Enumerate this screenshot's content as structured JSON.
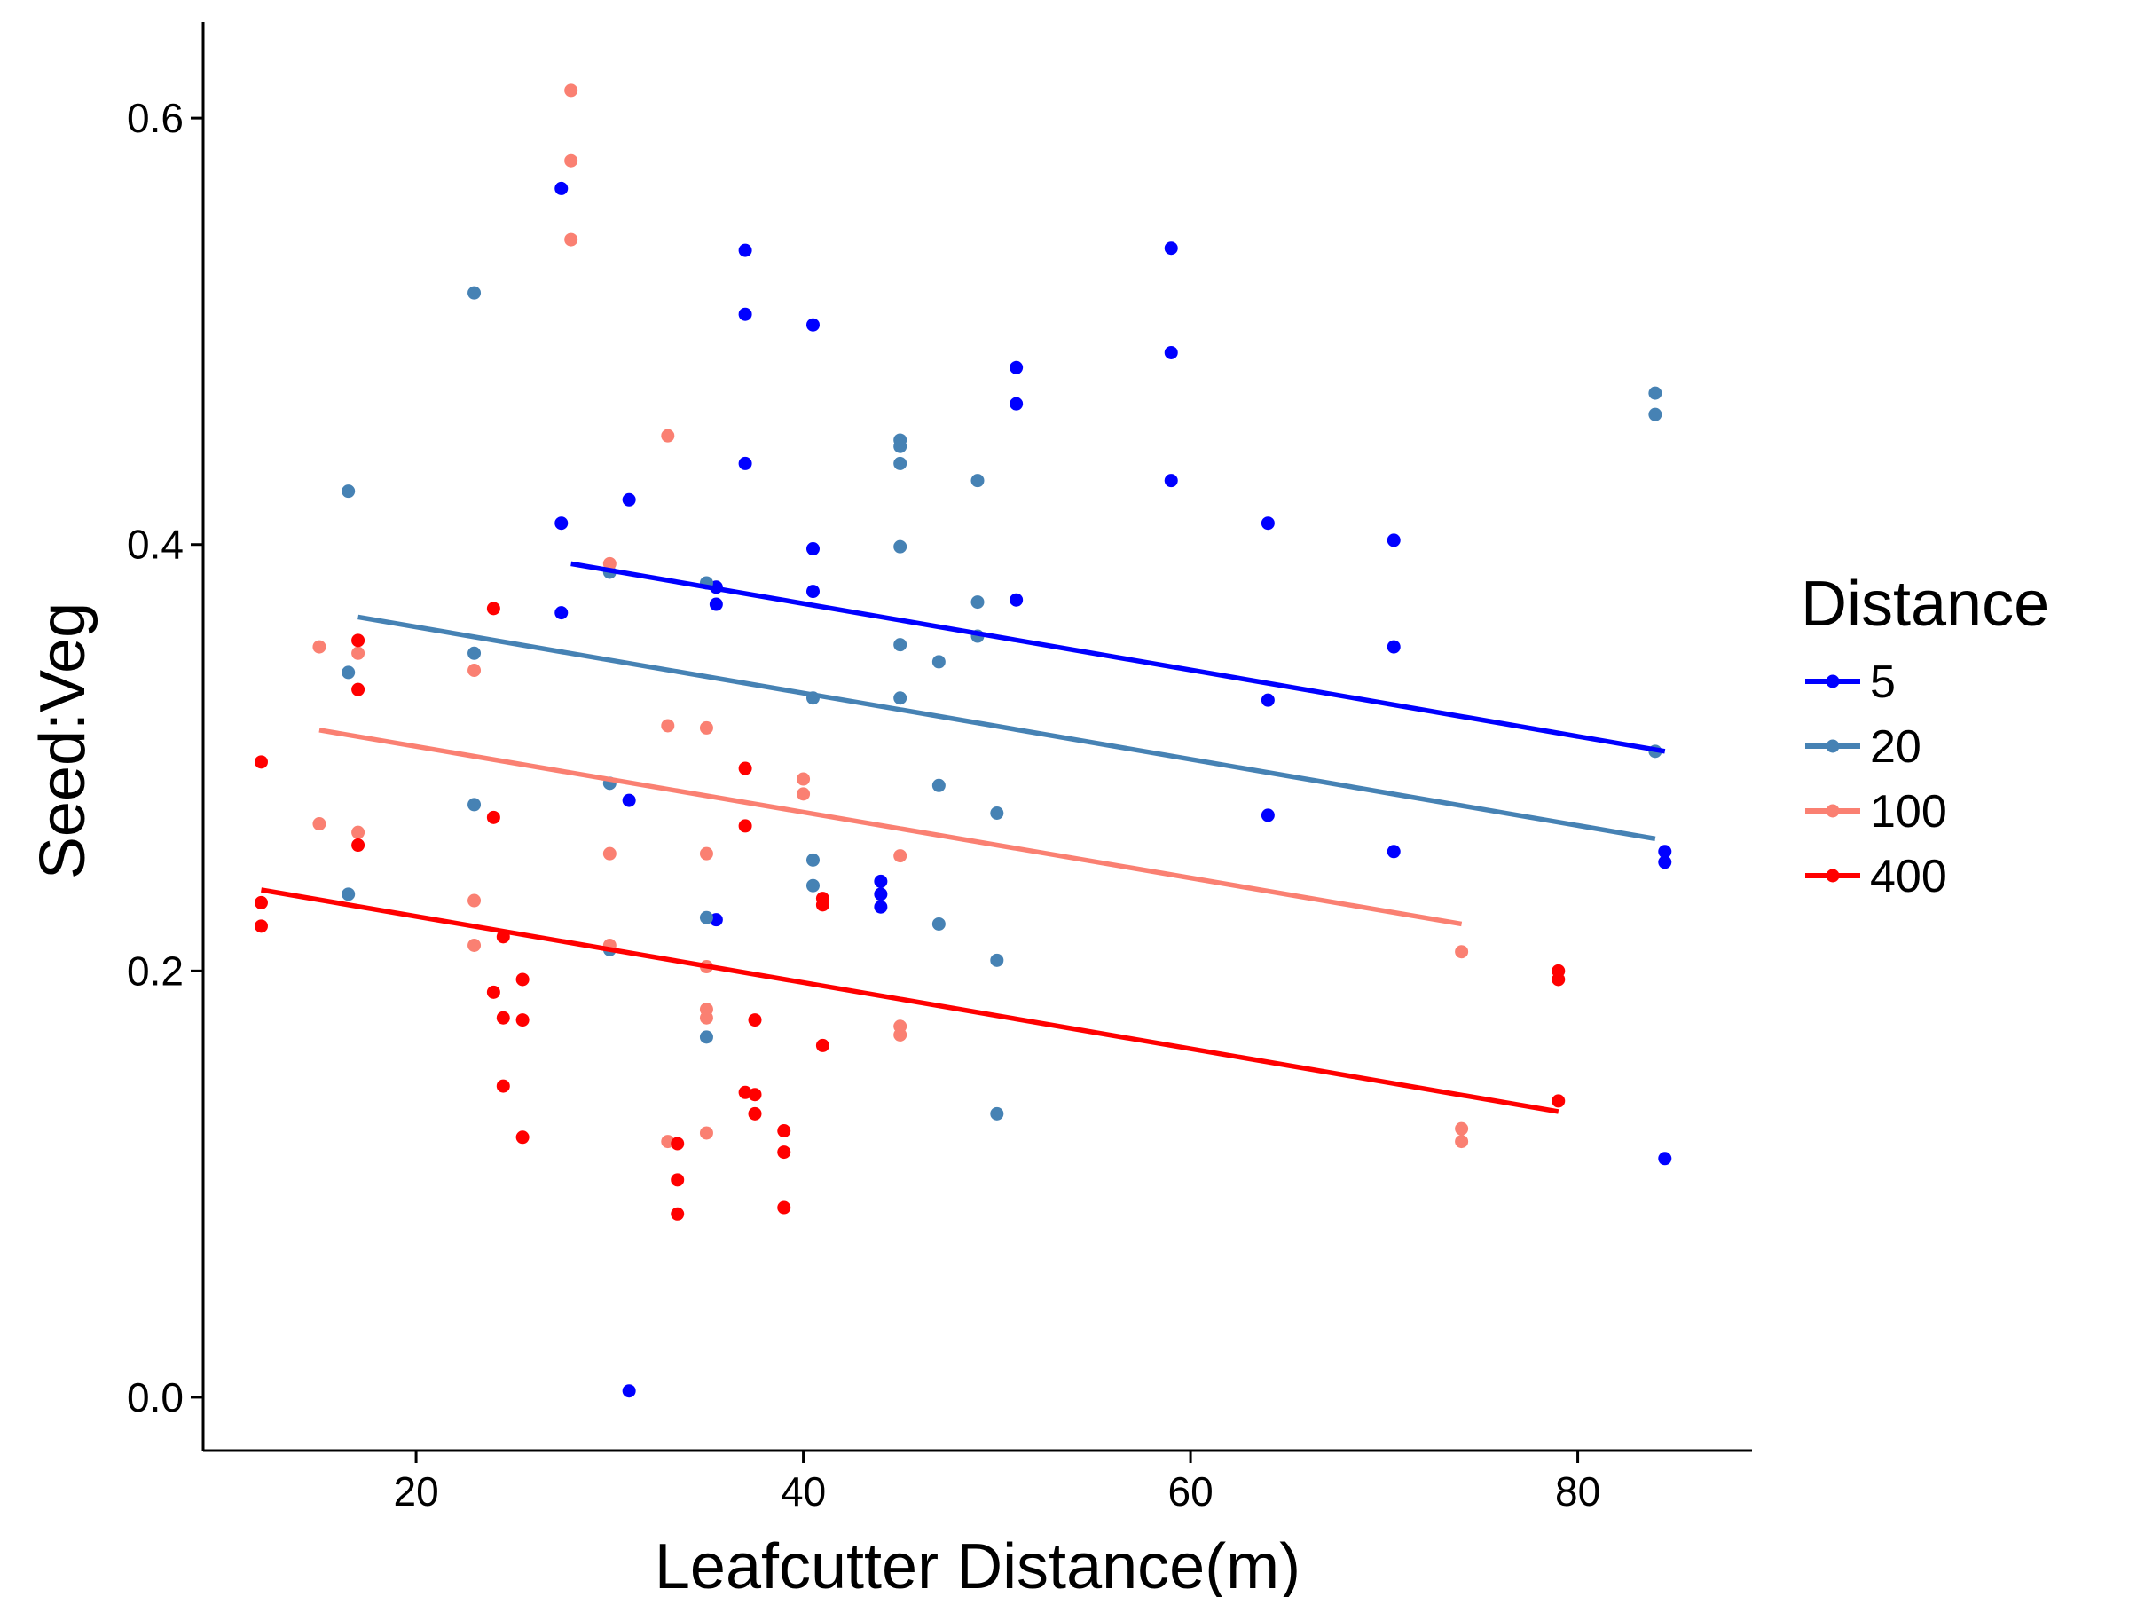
{
  "chart_data": {
    "type": "scatter",
    "title": "",
    "xlabel": "Leafcutter Distance(m)",
    "ylabel": "Seed:Veg",
    "xlim": [
      9,
      89
    ],
    "ylim": [
      -0.025,
      0.645
    ],
    "xticks": [
      20,
      40,
      60,
      80
    ],
    "yticks": [
      0.0,
      0.2,
      0.4,
      0.6
    ],
    "xtick_labels": [
      "20",
      "40",
      "60",
      "80"
    ],
    "ytick_labels": [
      "0.0",
      "0.2",
      "0.4",
      "0.6"
    ],
    "grid": false,
    "legend": {
      "title": "Distance",
      "placement": "right"
    },
    "series": [
      {
        "name": "5",
        "color": "#0000FF",
        "points": [
          [
            27.5,
            0.567
          ],
          [
            37,
            0.538
          ],
          [
            59,
            0.539
          ],
          [
            37,
            0.508
          ],
          [
            40.5,
            0.503
          ],
          [
            59,
            0.49
          ],
          [
            51,
            0.483
          ],
          [
            51,
            0.466
          ],
          [
            37,
            0.438
          ],
          [
            59,
            0.43
          ],
          [
            31,
            0.421
          ],
          [
            27.5,
            0.41
          ],
          [
            64,
            0.41
          ],
          [
            70.5,
            0.402
          ],
          [
            40.5,
            0.398
          ],
          [
            40.5,
            0.378
          ],
          [
            35.5,
            0.38
          ],
          [
            35.5,
            0.372
          ],
          [
            51,
            0.374
          ],
          [
            27.5,
            0.368
          ],
          [
            70.5,
            0.352
          ],
          [
            64,
            0.327
          ],
          [
            31,
            0.28
          ],
          [
            64,
            0.273
          ],
          [
            70.5,
            0.256
          ],
          [
            84.5,
            0.256
          ],
          [
            84.5,
            0.251
          ],
          [
            44,
            0.242
          ],
          [
            44,
            0.236
          ],
          [
            44,
            0.23
          ],
          [
            35.5,
            0.224
          ],
          [
            84.5,
            0.112
          ],
          [
            31,
            0.003
          ]
        ],
        "fit": [
          [
            28,
            0.391
          ],
          [
            84.5,
            0.303
          ]
        ]
      },
      {
        "name": "20",
        "color": "#4682B4",
        "points": [
          [
            23,
            0.518
          ],
          [
            84,
            0.471
          ],
          [
            84,
            0.461
          ],
          [
            45,
            0.449
          ],
          [
            45,
            0.446
          ],
          [
            45,
            0.438
          ],
          [
            49,
            0.43
          ],
          [
            16.5,
            0.425
          ],
          [
            45,
            0.399
          ],
          [
            30,
            0.387
          ],
          [
            35,
            0.382
          ],
          [
            49,
            0.373
          ],
          [
            49,
            0.357
          ],
          [
            45,
            0.353
          ],
          [
            23,
            0.349
          ],
          [
            47,
            0.345
          ],
          [
            16.5,
            0.34
          ],
          [
            40.5,
            0.328
          ],
          [
            45,
            0.328
          ],
          [
            84,
            0.303
          ],
          [
            30,
            0.288
          ],
          [
            47,
            0.287
          ],
          [
            23,
            0.278
          ],
          [
            50,
            0.274
          ],
          [
            40.5,
            0.252
          ],
          [
            40.5,
            0.24
          ],
          [
            16.5,
            0.236
          ],
          [
            35,
            0.225
          ],
          [
            47,
            0.222
          ],
          [
            30,
            0.21
          ],
          [
            50,
            0.205
          ],
          [
            35,
            0.169
          ],
          [
            50,
            0.133
          ]
        ],
        "fit": [
          [
            17,
            0.366
          ],
          [
            84,
            0.262
          ]
        ]
      },
      {
        "name": "100",
        "color": "#FA8072",
        "points": [
          [
            28,
            0.613
          ],
          [
            28,
            0.58
          ],
          [
            28,
            0.543
          ],
          [
            33,
            0.451
          ],
          [
            30,
            0.391
          ],
          [
            15,
            0.352
          ],
          [
            17,
            0.349
          ],
          [
            23,
            0.341
          ],
          [
            33,
            0.315
          ],
          [
            35,
            0.314
          ],
          [
            40,
            0.29
          ],
          [
            40,
            0.283
          ],
          [
            15,
            0.269
          ],
          [
            17,
            0.265
          ],
          [
            30,
            0.255
          ],
          [
            35,
            0.255
          ],
          [
            45,
            0.254
          ],
          [
            23,
            0.233
          ],
          [
            23,
            0.212
          ],
          [
            30,
            0.212
          ],
          [
            74,
            0.209
          ],
          [
            35,
            0.202
          ],
          [
            35,
            0.182
          ],
          [
            35,
            0.178
          ],
          [
            45,
            0.174
          ],
          [
            45,
            0.17
          ],
          [
            74,
            0.126
          ],
          [
            35,
            0.124
          ],
          [
            74,
            0.12
          ],
          [
            33,
            0.12
          ]
        ],
        "fit": [
          [
            15,
            0.313
          ],
          [
            74,
            0.222
          ]
        ]
      },
      {
        "name": "400",
        "color": "#FF0000",
        "points": [
          [
            12,
            0.298
          ],
          [
            17,
            0.355
          ],
          [
            24,
            0.37
          ],
          [
            17,
            0.332
          ],
          [
            37,
            0.295
          ],
          [
            24,
            0.272
          ],
          [
            37,
            0.268
          ],
          [
            17,
            0.259
          ],
          [
            12,
            0.232
          ],
          [
            41,
            0.234
          ],
          [
            41,
            0.231
          ],
          [
            12,
            0.221
          ],
          [
            24.5,
            0.216
          ],
          [
            79,
            0.2
          ],
          [
            79,
            0.196
          ],
          [
            25.5,
            0.196
          ],
          [
            24,
            0.19
          ],
          [
            24.5,
            0.178
          ],
          [
            25.5,
            0.177
          ],
          [
            37.5,
            0.177
          ],
          [
            41,
            0.165
          ],
          [
            24.5,
            0.146
          ],
          [
            37,
            0.143
          ],
          [
            37.5,
            0.142
          ],
          [
            79,
            0.139
          ],
          [
            37.5,
            0.133
          ],
          [
            39,
            0.125
          ],
          [
            25.5,
            0.122
          ],
          [
            33.5,
            0.119
          ],
          [
            39,
            0.115
          ],
          [
            33.5,
            0.102
          ],
          [
            39,
            0.089
          ],
          [
            33.5,
            0.086
          ]
        ],
        "fit": [
          [
            12,
            0.238
          ],
          [
            79,
            0.134
          ]
        ]
      }
    ]
  }
}
